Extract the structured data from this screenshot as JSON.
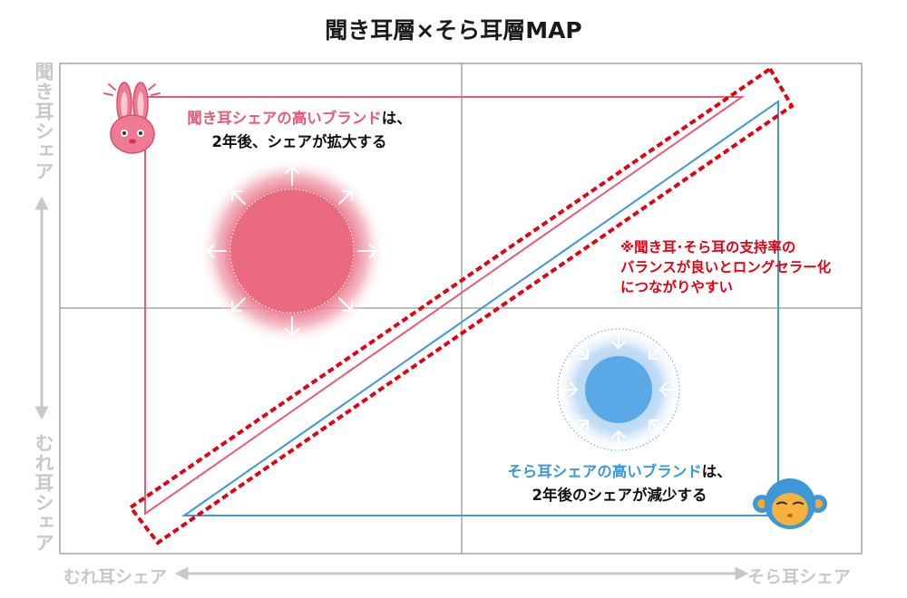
{
  "title": "聞き耳層×そら耳層MAP",
  "axes": {
    "y_top": "聞き耳シェア",
    "y_bottom": "むれ耳シェア",
    "x_left": "むれ耳シェア",
    "x_right": "そら耳シェア"
  },
  "captions": {
    "pink_highlight": "聞き耳シェアの高いブランド",
    "pink_particle": "は、",
    "pink_line2": "2年後、シェアが拡大する",
    "blue_highlight": "そら耳シェアの高いブランド",
    "blue_particle": "は、",
    "blue_line2": "2年後のシェアが減少する"
  },
  "note": {
    "line1": "※聞き耳･そら耳の支持率の",
    "line2": "バランスが良いとロングセラー化",
    "line3": "につながりやすい"
  },
  "colors": {
    "pink": "#e85a78",
    "blue": "#3e97d6",
    "red_dashed": "#e60012",
    "axis_label": "#c4c9cc"
  },
  "icons": {
    "top_left": "rabbit-icon",
    "bottom_right": "monkey-icon"
  }
}
